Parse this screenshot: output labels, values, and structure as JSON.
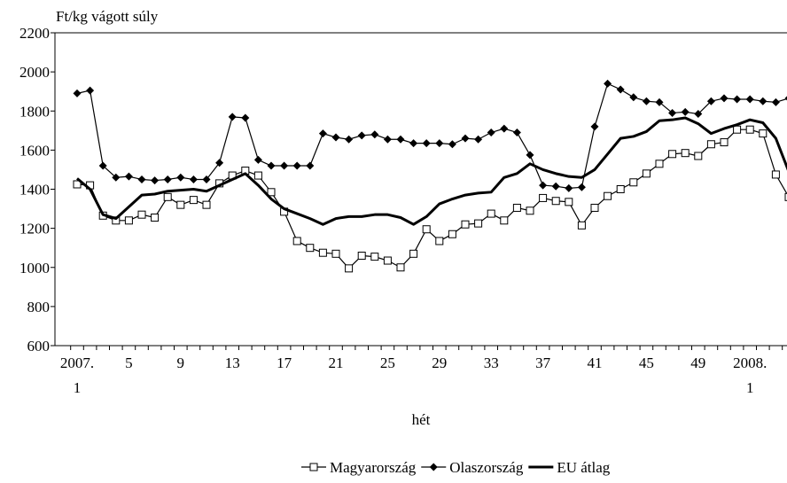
{
  "chart_data": {
    "type": "line",
    "y_axis_label": "Ft/kg vágott súly",
    "x_axis_label": "hét",
    "categories": [
      "2007.\n1",
      null,
      null,
      null,
      "5",
      null,
      null,
      null,
      "9",
      null,
      null,
      null,
      "13",
      null,
      null,
      null,
      "17",
      null,
      null,
      null,
      "21",
      null,
      null,
      null,
      "25",
      null,
      null,
      null,
      "29",
      null,
      null,
      null,
      "33",
      null,
      null,
      null,
      "37",
      null,
      null,
      null,
      "41",
      null,
      null,
      null,
      "45",
      null,
      null,
      null,
      "49",
      null,
      null,
      null,
      "2008.\n1",
      null,
      null,
      null
    ],
    "series": [
      {
        "name": "Magyarország",
        "color": "#000000",
        "marker": "square",
        "values": [
          1425,
          1420,
          1265,
          1240,
          1240,
          1270,
          1255,
          1360,
          1320,
          1345,
          1320,
          1430,
          1470,
          1495,
          1470,
          1385,
          1285,
          1135,
          1100,
          1075,
          1070,
          995,
          1060,
          1055,
          1035,
          1000,
          1070,
          1195,
          1135,
          1170,
          1220,
          1225,
          1275,
          1240,
          1305,
          1290,
          1355,
          1340,
          1335,
          1215,
          1305,
          1365,
          1400,
          1435,
          1480,
          1530,
          1580,
          1585,
          1570,
          1630,
          1640,
          1705,
          1705,
          1685,
          1475,
          1360
        ]
      },
      {
        "name": "Olaszország",
        "color": "#000000",
        "marker": "diamond",
        "values": [
          1890,
          1905,
          1520,
          1460,
          1465,
          1450,
          1445,
          1450,
          1460,
          1450,
          1450,
          1535,
          1770,
          1765,
          1550,
          1520,
          1520,
          1520,
          1520,
          1685,
          1665,
          1655,
          1675,
          1680,
          1655,
          1655,
          1635,
          1635,
          1635,
          1630,
          1660,
          1655,
          1690,
          1710,
          1690,
          1575,
          1420,
          1415,
          1405,
          1410,
          1720,
          1940,
          1910,
          1870,
          1850,
          1845,
          1790,
          1795,
          1785,
          1850,
          1865,
          1860,
          1860,
          1850,
          1845,
          1865
        ]
      },
      {
        "name": "EU átlag",
        "color": "#000000",
        "marker": "none",
        "values": [
          1455,
          1400,
          1270,
          1250,
          1310,
          1370,
          1375,
          1390,
          1395,
          1400,
          1390,
          1420,
          1450,
          1480,
          1420,
          1350,
          1300,
          1275,
          1250,
          1220,
          1250,
          1260,
          1260,
          1270,
          1270,
          1255,
          1220,
          1260,
          1325,
          1350,
          1370,
          1380,
          1385,
          1460,
          1480,
          1530,
          1500,
          1480,
          1465,
          1460,
          1500,
          1580,
          1660,
          1670,
          1695,
          1750,
          1755,
          1765,
          1735,
          1685,
          1710,
          1730,
          1755,
          1740,
          1660,
          1490
        ]
      }
    ],
    "ylim": [
      600,
      2200
    ],
    "yticks": [
      600,
      800,
      1000,
      1200,
      1400,
      1600,
      1800,
      2000,
      2200
    ],
    "grid": false,
    "legend": "bottom"
  }
}
